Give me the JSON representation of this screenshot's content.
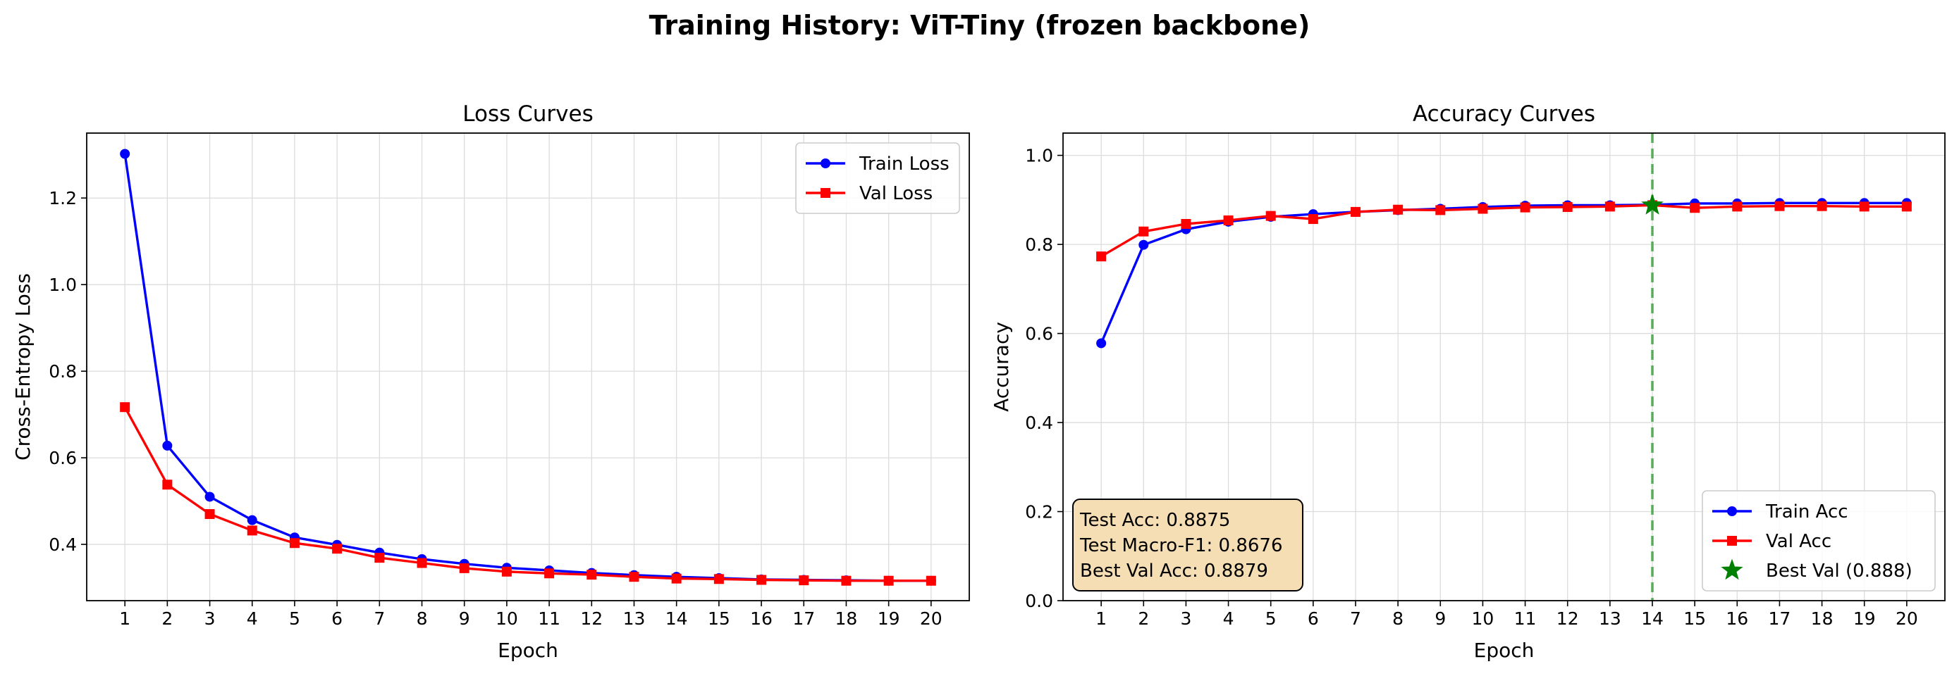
{
  "suptitle": "Training History: ViT-Tiny (frozen backbone)",
  "colors": {
    "train": "#0000ff",
    "val": "#ff0000",
    "best_marker": "#008000",
    "best_line": "#5aac5a",
    "grid": "#dcdcdc",
    "textbox_bg": "#f5deb3"
  },
  "chart_data": [
    {
      "type": "line",
      "title": "Loss Curves",
      "xlabel": "Epoch",
      "ylabel": "Cross-Entropy Loss",
      "x": [
        1,
        2,
        3,
        4,
        5,
        6,
        7,
        8,
        9,
        10,
        11,
        12,
        13,
        14,
        15,
        16,
        17,
        18,
        19,
        20
      ],
      "xlim": [
        0.1,
        20.9
      ],
      "ylim": [
        0.27,
        1.35
      ],
      "yticks": [
        0.4,
        0.6,
        0.8,
        1.0,
        1.2
      ],
      "ytick_labels": [
        "0.4",
        "0.6",
        "0.8",
        "1.0",
        "1.2"
      ],
      "grid": true,
      "legend_position": "upper-right",
      "series": [
        {
          "name": "Train Loss",
          "marker": "circle",
          "color": "#0000ff",
          "values": [
            1.302,
            0.628,
            0.51,
            0.456,
            0.416,
            0.399,
            0.381,
            0.366,
            0.355,
            0.346,
            0.34,
            0.334,
            0.329,
            0.325,
            0.322,
            0.319,
            0.318,
            0.317,
            0.316,
            0.316
          ]
        },
        {
          "name": "Val Loss",
          "marker": "square",
          "color": "#ff0000",
          "values": [
            0.717,
            0.538,
            0.47,
            0.432,
            0.403,
            0.39,
            0.369,
            0.357,
            0.345,
            0.337,
            0.333,
            0.33,
            0.325,
            0.321,
            0.32,
            0.318,
            0.317,
            0.316,
            0.316,
            0.316
          ]
        }
      ]
    },
    {
      "type": "line",
      "title": "Accuracy Curves",
      "xlabel": "Epoch",
      "ylabel": "Accuracy",
      "x": [
        1,
        2,
        3,
        4,
        5,
        6,
        7,
        8,
        9,
        10,
        11,
        12,
        13,
        14,
        15,
        16,
        17,
        18,
        19,
        20
      ],
      "xlim": [
        0.1,
        20.9
      ],
      "ylim": [
        0.0,
        1.05
      ],
      "yticks": [
        0.0,
        0.2,
        0.4,
        0.6,
        0.8,
        1.0
      ],
      "ytick_labels": [
        "0.0",
        "0.2",
        "0.4",
        "0.6",
        "0.8",
        "1.0"
      ],
      "grid": true,
      "legend_position": "lower-right",
      "series": [
        {
          "name": "Train Acc",
          "marker": "circle",
          "color": "#0000ff",
          "values": [
            0.578,
            0.799,
            0.834,
            0.851,
            0.862,
            0.868,
            0.873,
            0.877,
            0.88,
            0.884,
            0.887,
            0.888,
            0.888,
            0.889,
            0.892,
            0.892,
            0.893,
            0.893,
            0.893,
            0.893
          ]
        },
        {
          "name": "Val Acc",
          "marker": "square",
          "color": "#ff0000",
          "values": [
            0.773,
            0.829,
            0.846,
            0.854,
            0.864,
            0.857,
            0.873,
            0.878,
            0.877,
            0.88,
            0.883,
            0.884,
            0.885,
            0.888,
            0.882,
            0.885,
            0.886,
            0.886,
            0.885,
            0.885
          ]
        }
      ],
      "best_val": {
        "label": "Best Val (0.888)",
        "epoch": 14,
        "value": 0.888
      },
      "textbox": {
        "position": "lower-left",
        "lines": [
          "Test Acc: 0.8875",
          "Test Macro-F1: 0.8676",
          "Best Val Acc: 0.8879"
        ]
      }
    }
  ]
}
